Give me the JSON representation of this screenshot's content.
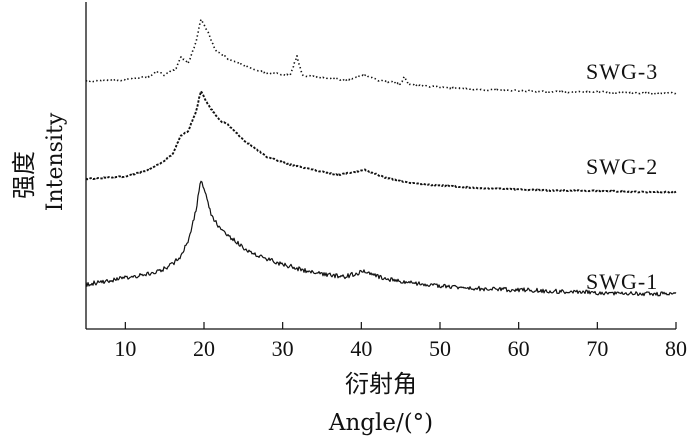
{
  "chart_data": {
    "type": "line",
    "xlabel_cn": "衍射角",
    "xlabel_en": "Angle/(°)",
    "ylabel_cn": "强度",
    "ylabel_en": "Intensity",
    "xlim": [
      5,
      80
    ],
    "x_ticks": [
      10,
      20,
      30,
      40,
      50,
      60,
      70,
      80
    ],
    "grid": false,
    "y_ticks_shown": false,
    "series": [
      {
        "name": "SWG-3",
        "style": "dotted",
        "points": [
          [
            5,
            0.09
          ],
          [
            10,
            0.1
          ],
          [
            13,
            0.13
          ],
          [
            14,
            0.17
          ],
          [
            15,
            0.14
          ],
          [
            16.5,
            0.2
          ],
          [
            17,
            0.29
          ],
          [
            18,
            0.24
          ],
          [
            19,
            0.42
          ],
          [
            19.6,
            0.61
          ],
          [
            20.5,
            0.5
          ],
          [
            21.5,
            0.34
          ],
          [
            23,
            0.28
          ],
          [
            25,
            0.22
          ],
          [
            28,
            0.16
          ],
          [
            31,
            0.14
          ],
          [
            31.8,
            0.3
          ],
          [
            32.5,
            0.14
          ],
          [
            35,
            0.12
          ],
          [
            38,
            0.1
          ],
          [
            40.5,
            0.14
          ],
          [
            42,
            0.1
          ],
          [
            45,
            0.07
          ],
          [
            45.5,
            0.13
          ],
          [
            46,
            0.06
          ],
          [
            50,
            0.04
          ],
          [
            55,
            0.02
          ],
          [
            60,
            0.01
          ],
          [
            65,
            0.0
          ],
          [
            70,
            0.0
          ],
          [
            75,
            -0.01
          ],
          [
            80,
            -0.01
          ]
        ]
      },
      {
        "name": "SWG-2",
        "style": "dashed",
        "points": [
          [
            5,
            0.1
          ],
          [
            10,
            0.12
          ],
          [
            13,
            0.17
          ],
          [
            15,
            0.24
          ],
          [
            16,
            0.29
          ],
          [
            17,
            0.43
          ],
          [
            18,
            0.47
          ],
          [
            19,
            0.62
          ],
          [
            19.6,
            0.78
          ],
          [
            20.5,
            0.67
          ],
          [
            22,
            0.55
          ],
          [
            23,
            0.52
          ],
          [
            25,
            0.4
          ],
          [
            28,
            0.27
          ],
          [
            31,
            0.21
          ],
          [
            34,
            0.17
          ],
          [
            37,
            0.13
          ],
          [
            40.5,
            0.17
          ],
          [
            43,
            0.11
          ],
          [
            46,
            0.07
          ],
          [
            50,
            0.05
          ],
          [
            55,
            0.03
          ],
          [
            60,
            0.02
          ],
          [
            65,
            0.01
          ],
          [
            70,
            0.01
          ],
          [
            75,
            0.0
          ],
          [
            80,
            0.0
          ]
        ]
      },
      {
        "name": "SWG-1",
        "style": "solid",
        "points": [
          [
            5,
            0.1
          ],
          [
            8,
            0.13
          ],
          [
            10,
            0.15
          ],
          [
            12,
            0.17
          ],
          [
            14,
            0.19
          ],
          [
            16,
            0.25
          ],
          [
            17,
            0.31
          ],
          [
            18,
            0.42
          ],
          [
            19,
            0.66
          ],
          [
            19.6,
            0.88
          ],
          [
            20.2,
            0.78
          ],
          [
            21,
            0.6
          ],
          [
            22,
            0.52
          ],
          [
            23,
            0.47
          ],
          [
            25,
            0.37
          ],
          [
            27,
            0.31
          ],
          [
            30,
            0.25
          ],
          [
            33,
            0.2
          ],
          [
            36,
            0.17
          ],
          [
            38,
            0.16
          ],
          [
            40.5,
            0.2
          ],
          [
            42,
            0.16
          ],
          [
            45,
            0.12
          ],
          [
            48,
            0.1
          ],
          [
            50,
            0.09
          ],
          [
            55,
            0.07
          ],
          [
            60,
            0.06
          ],
          [
            65,
            0.05
          ],
          [
            70,
            0.04
          ],
          [
            75,
            0.03
          ],
          [
            80,
            0.03
          ]
        ]
      }
    ]
  }
}
